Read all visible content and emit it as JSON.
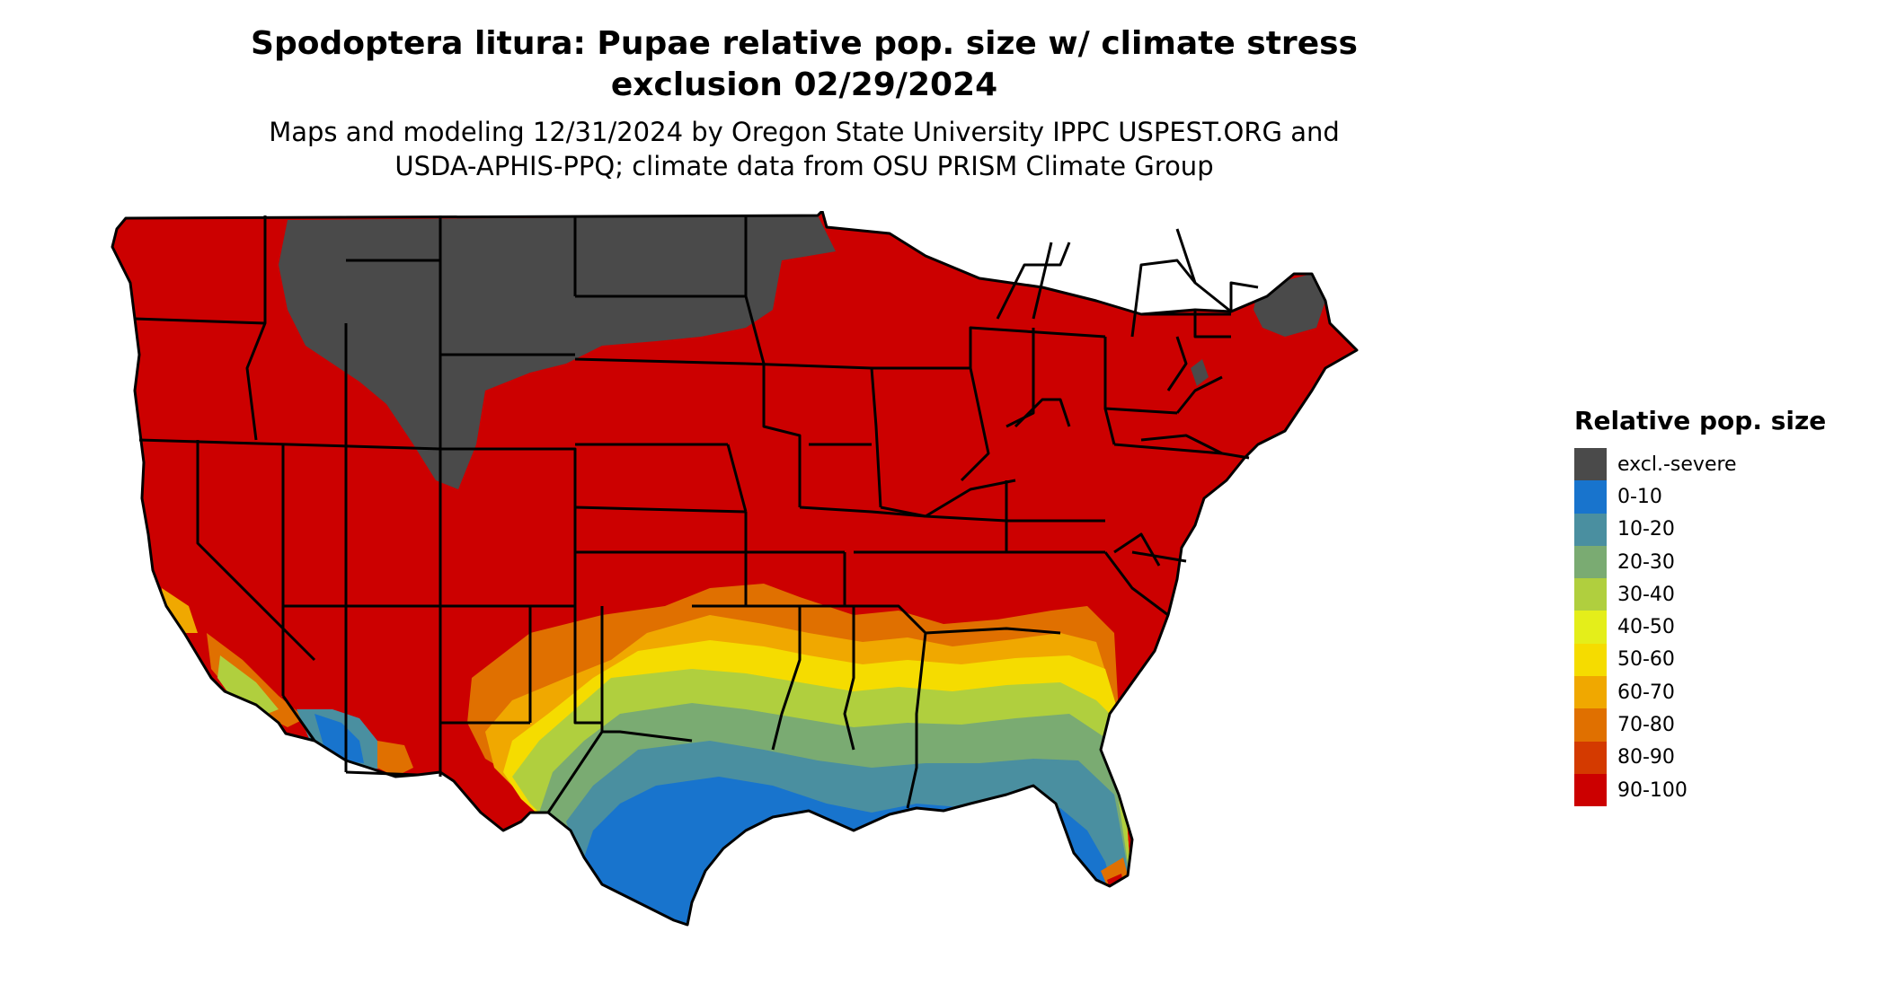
{
  "title": {
    "line1": "Spodoptera litura: Pupae relative pop. size w/ climate stress",
    "line2": "exclusion 02/29/2024"
  },
  "subtitle": {
    "line1": "Maps and modeling 12/31/2024 by Oregon State University IPPC USPEST.ORG and",
    "line2": "USDA-APHIS-PPQ; climate data from OSU PRISM Climate Group"
  },
  "legend": {
    "title": "Relative pop. size",
    "items": [
      {
        "label": "excl.-severe",
        "color": "#4a4a4a"
      },
      {
        "label": "0-10",
        "color": "#1874cd"
      },
      {
        "label": "10-20",
        "color": "#4a8fa0"
      },
      {
        "label": "20-30",
        "color": "#7aab72"
      },
      {
        "label": "30-40",
        "color": "#b0cf3e"
      },
      {
        "label": "40-50",
        "color": "#e4ee1a"
      },
      {
        "label": "50-60",
        "color": "#f5dc00"
      },
      {
        "label": "60-70",
        "color": "#f0a800"
      },
      {
        "label": "70-80",
        "color": "#e07000"
      },
      {
        "label": "80-90",
        "color": "#d43a00"
      },
      {
        "label": "90-100",
        "color": "#cc0000"
      }
    ]
  }
}
